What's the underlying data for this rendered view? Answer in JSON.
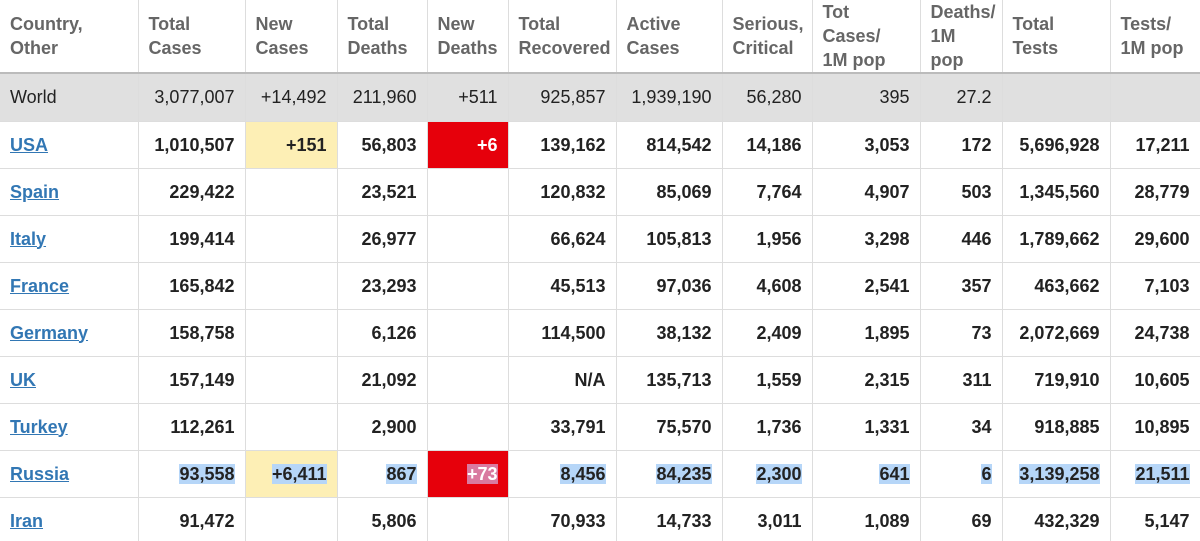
{
  "table": {
    "headers": [
      "Country,\nOther",
      "Total\nCases",
      "New\nCases",
      "Total\nDeaths",
      "New\nDeaths",
      "Total\nRecovered",
      "Active\nCases",
      "Serious,\nCritical",
      "Tot Cases/\n1M pop",
      "Deaths/\n1M pop",
      "Total\nTests",
      "Tests/\n1M pop"
    ],
    "world": {
      "country": "World",
      "cells": [
        "3,077,007",
        "+14,492",
        "211,960",
        "+511",
        "925,857",
        "1,939,190",
        "56,280",
        "395",
        "27.2"
      ]
    },
    "rows": [
      {
        "country": "USA",
        "cells": [
          "1,010,507",
          "+151",
          "56,803",
          "+6",
          "139,162",
          "814,542",
          "14,186",
          "3,053",
          "172",
          "5,696,928",
          "17,211"
        ]
      },
      {
        "country": "Spain",
        "cells": [
          "229,422",
          "",
          "23,521",
          "",
          "120,832",
          "85,069",
          "7,764",
          "4,907",
          "503",
          "1,345,560",
          "28,779"
        ]
      },
      {
        "country": "Italy",
        "cells": [
          "199,414",
          "",
          "26,977",
          "",
          "66,624",
          "105,813",
          "1,956",
          "3,298",
          "446",
          "1,789,662",
          "29,600"
        ]
      },
      {
        "country": "France",
        "cells": [
          "165,842",
          "",
          "23,293",
          "",
          "45,513",
          "97,036",
          "4,608",
          "2,541",
          "357",
          "463,662",
          "7,103"
        ]
      },
      {
        "country": "Germany",
        "cells": [
          "158,758",
          "",
          "6,126",
          "",
          "114,500",
          "38,132",
          "2,409",
          "1,895",
          "73",
          "2,072,669",
          "24,738"
        ]
      },
      {
        "country": "UK",
        "cells": [
          "157,149",
          "",
          "21,092",
          "",
          "N/A",
          "135,713",
          "1,559",
          "2,315",
          "311",
          "719,910",
          "10,605"
        ]
      },
      {
        "country": "Turkey",
        "cells": [
          "112,261",
          "",
          "2,900",
          "",
          "33,791",
          "75,570",
          "1,736",
          "1,331",
          "34",
          "918,885",
          "10,895"
        ]
      },
      {
        "country": "Russia",
        "selected": true,
        "cells": [
          "93,558",
          "+6,411",
          "867",
          "+73",
          "8,456",
          "84,235",
          "2,300",
          "641",
          "6",
          "3,139,258",
          "21,511"
        ]
      },
      {
        "country": "Iran",
        "cells": [
          "91,472",
          "",
          "5,806",
          "",
          "70,933",
          "14,733",
          "3,011",
          "1,089",
          "69",
          "432,329",
          "5,147"
        ]
      }
    ]
  }
}
